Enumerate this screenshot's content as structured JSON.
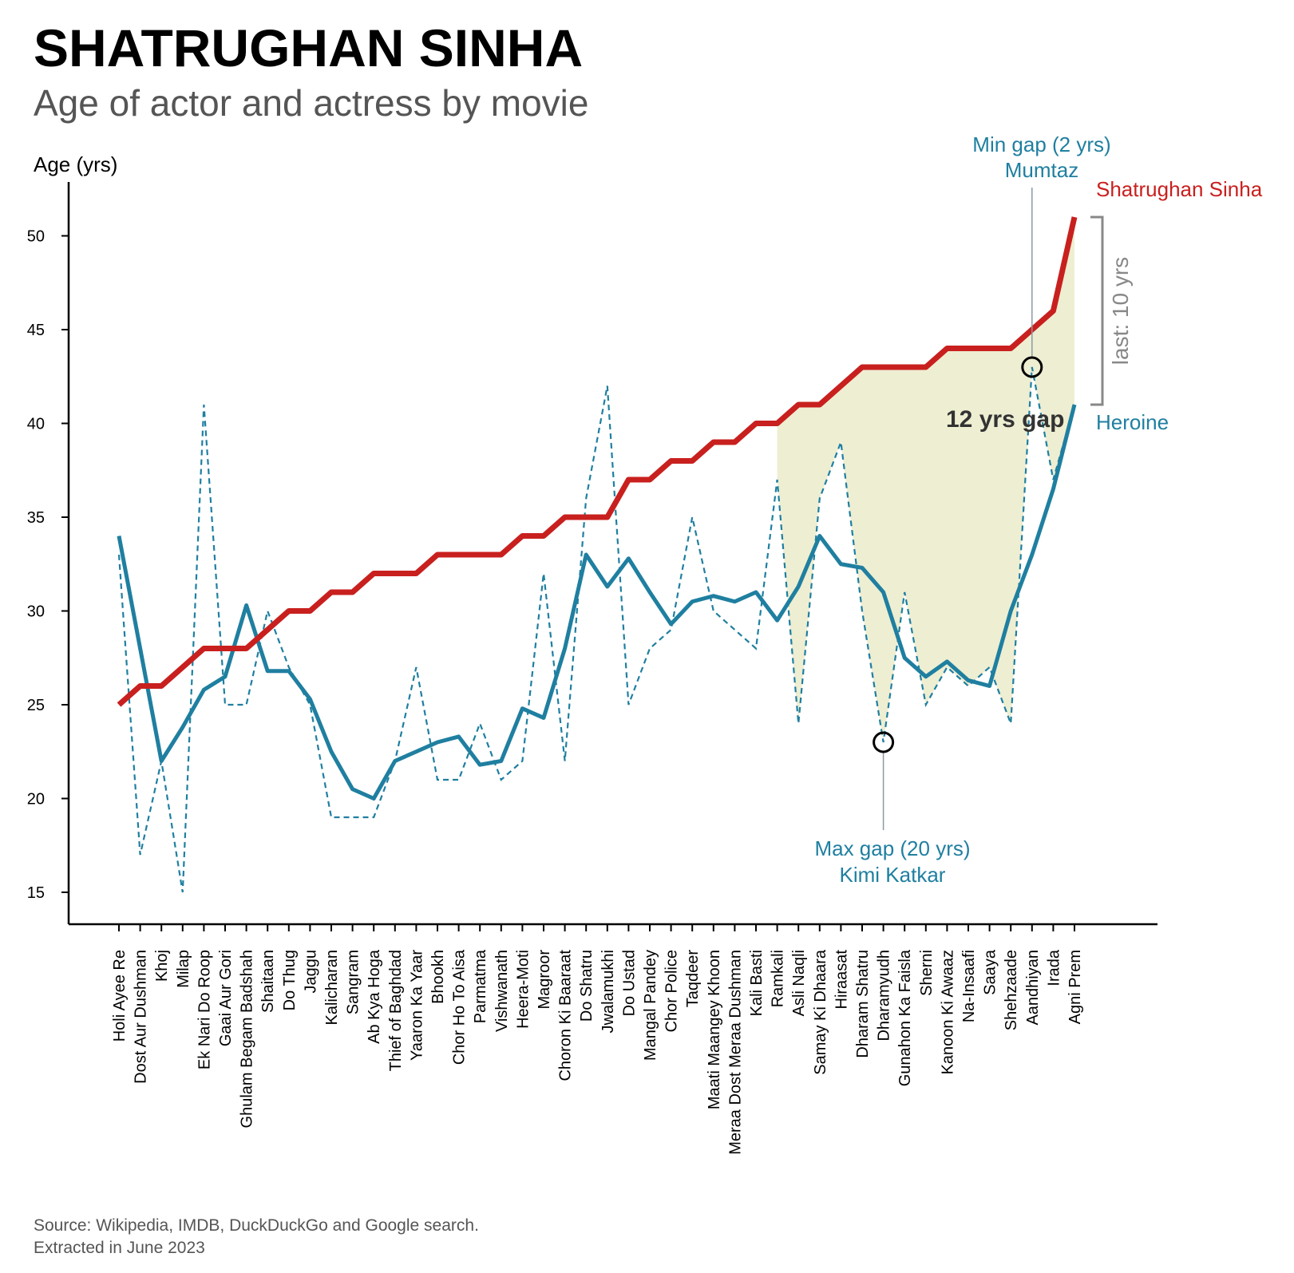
{
  "header": {
    "title": "SHATRUGHAN SINHA",
    "subtitle": "Age of actor and actress by movie"
  },
  "footer": {
    "source_line1": "Source: Wikipedia, IMDB, DuckDuckGo and Google search.",
    "source_line2": "Extracted in June 2023"
  },
  "annotations": {
    "min_gap_line1": "Min gap (2 yrs)",
    "min_gap_line2": "Mumtaz",
    "max_gap_line1": "Max gap (20 yrs)",
    "max_gap_line2": "Kimi Katkar",
    "gap_label": "12 yrs gap",
    "last_label": "last: 10 yrs",
    "actor_label": "Shatrughan Sinha",
    "heroine_label": "Heroine"
  },
  "colors": {
    "actor": "#c8201e",
    "heroine": "#1f7fa0",
    "gap_fill": "#eeeed2",
    "bracket": "#888888"
  },
  "chart_data": {
    "type": "line",
    "ylabel": "Age (yrs)",
    "xlabel": "",
    "ylim": [
      13.3,
      53
    ],
    "yticks": [
      15,
      20,
      25,
      30,
      35,
      40,
      45,
      50
    ],
    "categories": [
      "Holi Ayee Re",
      "Dost Aur Dushman",
      "Khoj",
      "Milap",
      "Ek Nari Do Roop",
      "Gaai Aur Gori",
      "Ghulam Begam Badshah",
      "Shaitaan",
      "Do Thug",
      "Jaggu",
      "Kalicharan",
      "Sangram",
      "Ab Kya Hoga",
      "Thief of Baghdad",
      "Yaaron Ka Yaar",
      "Bhookh",
      "Chor Ho To Aisa",
      "Parmatma",
      "Vishwanath",
      "Heera-Moti",
      "Magroor",
      "Choron Ki Baaraat",
      "Do Shatru",
      "Jwalamukhi",
      "Do Ustad",
      "Mangal Pandey",
      "Chor Police",
      "Taqdeer",
      "Maati Maangey Khoon",
      "Meraa Dost Meraa Dushman",
      "Kali Basti",
      "Ramkali",
      "Asli Naqli",
      "Samay Ki Dhaara",
      "Hiraasat",
      "Dharam Shatru",
      "Dharamyudh",
      "Gunahon Ka Faisla",
      "Sherni",
      "Kanoon Ki Awaaz",
      "Na-Insaafi",
      "Saaya",
      "Shehzaade",
      "Aandhiyan",
      "Irada",
      "Agni Prem"
    ],
    "series": [
      {
        "name": "Shatrughan Sinha",
        "style": "solid-thick",
        "values": [
          25,
          26,
          26,
          27,
          28,
          28,
          28,
          29,
          30,
          30,
          31,
          31,
          32,
          32,
          32,
          33,
          33,
          33,
          33,
          34,
          34,
          35,
          35,
          35,
          37,
          37,
          38,
          38,
          39,
          39,
          40,
          40,
          41,
          41,
          42,
          43,
          43,
          43,
          43,
          44,
          44,
          44,
          44,
          45,
          46,
          51
        ]
      },
      {
        "name": "Heroine",
        "style": "dashed",
        "values": [
          33,
          17,
          22,
          15,
          41,
          25,
          25,
          30,
          27,
          25,
          19,
          19,
          19,
          22,
          27,
          21,
          21,
          24,
          21,
          22,
          32,
          22,
          36,
          42,
          25,
          28,
          29,
          35,
          30,
          29,
          28,
          37,
          24,
          36,
          39,
          30,
          23,
          31,
          25,
          27,
          26,
          27,
          24,
          43,
          37,
          41
        ]
      },
      {
        "name": "Heroine",
        "style": "smoothed-thick",
        "values": [
          34,
          28,
          22,
          23.8,
          25.8,
          26.5,
          30.3,
          26.8,
          26.8,
          25.3,
          22.5,
          20.5,
          20,
          22,
          22.5,
          23,
          23.3,
          21.8,
          22,
          24.8,
          24.3,
          28,
          33,
          31.3,
          32.8,
          31,
          29.3,
          30.5,
          30.8,
          30.5,
          31,
          29.5,
          31.3,
          34,
          32.5,
          32.3,
          31,
          27.5,
          26.5,
          27.3,
          26.3,
          26,
          30,
          33,
          36.5,
          41
        ]
      }
    ],
    "shaded_range": {
      "from": "Ramkali",
      "to": "Agni Prem"
    },
    "highlighted_points": [
      {
        "category": "Dharamyudh",
        "value": 23
      },
      {
        "category": "Aandhiyan",
        "value": 43
      }
    ],
    "bracket": {
      "category": "Agni Prem",
      "from": 41,
      "to": 51
    }
  }
}
